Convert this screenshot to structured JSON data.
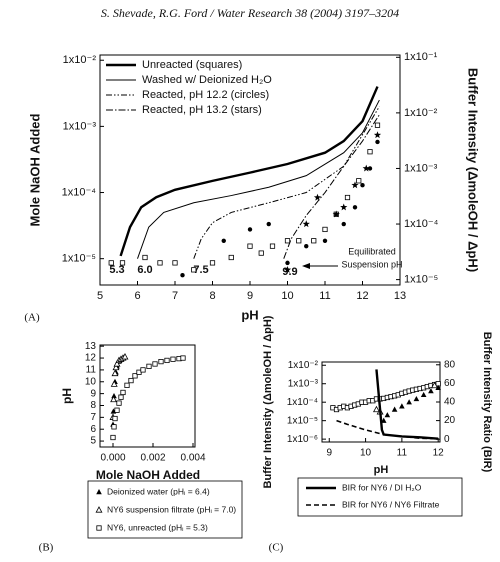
{
  "header": "S. Shevade, R.G. Ford / Water Research 38 (2004) 3197–3204",
  "chart_data": [
    {
      "type": "line",
      "panel": "(A)",
      "xlabel": "pH",
      "ylabel": "Mole NaOH Added",
      "y2label": "Buffer Intensity (ΔmoleOH / ΔpH)",
      "xlim": [
        5,
        13
      ],
      "xticks": [
        5,
        6,
        7,
        8,
        9,
        10,
        11,
        12,
        13
      ],
      "yscale": "log",
      "ylim": [
        4e-06,
        0.012
      ],
      "yticks": [
        {
          "value": 1e-05,
          "label": "1x10⁻⁵"
        },
        {
          "value": 0.0001,
          "label": "1x10⁻⁴"
        },
        {
          "value": 0.001,
          "label": "1x10⁻³"
        },
        {
          "value": 0.01,
          "label": "1x10⁻²"
        }
      ],
      "y2scale": "log",
      "y2lim": [
        8e-06,
        0.11
      ],
      "y2ticks": [
        {
          "value": 1e-05,
          "label": "1x10⁻⁵"
        },
        {
          "value": 0.0001,
          "label": "1x10⁻⁴"
        },
        {
          "value": 0.001,
          "label": "1x10⁻³"
        },
        {
          "value": 0.01,
          "label": "1x10⁻²"
        },
        {
          "value": 0.1,
          "label": "1x10⁻¹"
        }
      ],
      "legend": "upper left",
      "annotations": [
        "5.3",
        "6.0",
        "7.5",
        "9.9",
        "Equilibrated",
        "Suspension pH"
      ],
      "series": [
        {
          "name": "Unreacted (squares)",
          "color": "#000000",
          "line_style": "thick-solid",
          "x": [
            5.55,
            5.8,
            6.1,
            6.5,
            7,
            8,
            9,
            10,
            11,
            11.5,
            12,
            12.4
          ],
          "values": [
            1.1e-05,
            3e-05,
            6e-05,
            8.5e-05,
            0.00011,
            0.00015,
            0.0002,
            0.00027,
            0.0004,
            0.0006,
            0.0012,
            0.004
          ],
          "marker": "square",
          "marker_axis": "y2",
          "marker_x": [
            5.3,
            5.6,
            6.2,
            6.6,
            7,
            7.5,
            8,
            8.5,
            9,
            9.3,
            9.6,
            10,
            10.3,
            10.7,
            11,
            11.3,
            11.6,
            11.9,
            12.2,
            12.4
          ],
          "marker_values": [
            2e-05,
            2e-05,
            2.5e-05,
            2e-05,
            2e-05,
            1.5e-05,
            2e-05,
            2.5e-05,
            4e-05,
            3e-05,
            4e-05,
            5e-05,
            5e-05,
            5e-05,
            8e-05,
            0.00015,
            0.0003,
            0.0006,
            0.002,
            0.006
          ]
        },
        {
          "name": "Washed w/ Deionized H₂O",
          "color": "#000000",
          "line_style": "solid",
          "x": [
            6.0,
            6.3,
            6.7,
            7.5,
            8.5,
            9.5,
            10.5,
            11.5,
            12,
            12.45
          ],
          "values": [
            1e-05,
            3e-05,
            5e-05,
            7e-05,
            9e-05,
            0.00012,
            0.00018,
            0.0004,
            0.0008,
            0.0025
          ]
        },
        {
          "name": "Reacted, pH 12.2 (circles)",
          "color": "#000000",
          "line_style": "dash-dot-dot",
          "x": [
            7.5,
            7.7,
            8,
            8.5,
            9.5,
            10.5,
            11.5,
            12.45
          ],
          "values": [
            1e-05,
            2e-05,
            3.5e-05,
            5e-05,
            7e-05,
            0.0001,
            0.00025,
            0.002
          ],
          "marker": "circle",
          "marker_axis": "y2",
          "marker_x": [
            7.2,
            8.3,
            9,
            9.5,
            10,
            10.5,
            11,
            11.5,
            11.8,
            12,
            12.2,
            12.4
          ],
          "marker_values": [
            1.2e-05,
            5e-05,
            8e-05,
            0.0001,
            2e-05,
            4e-05,
            5e-05,
            0.0001,
            0.0002,
            0.0005,
            0.001,
            0.003
          ]
        },
        {
          "name": "Reacted, pH 13.2 (stars)",
          "color": "#000000",
          "line_style": "dash-dot",
          "x": [
            9.9,
            10.1,
            10.5,
            11,
            11.5,
            12,
            12.45
          ],
          "values": [
            1e-05,
            2e-05,
            4.5e-05,
            0.0001,
            0.00025,
            0.0006,
            0.0015
          ],
          "marker": "star",
          "marker_axis": "y2",
          "marker_x": [
            10,
            10.5,
            10.8,
            11.3,
            11.5,
            11.8,
            12.1,
            12.4
          ],
          "marker_values": [
            1.5e-05,
            0.0001,
            0.0003,
            0.00015,
            0.0002,
            0.0005,
            0.001,
            0.004
          ]
        }
      ]
    },
    {
      "type": "scatter",
      "panel": "(B)",
      "xlabel": "Mole NaOH Added",
      "ylabel": "pH",
      "xlim": [
        -0.00065,
        0.0041
      ],
      "xticks": [
        {
          "value": 0,
          "label": "0.000"
        },
        {
          "value": 0.002,
          "label": "0.002"
        },
        {
          "value": 0.004,
          "label": "0.004"
        }
      ],
      "ylim": [
        4.5,
        13.1
      ],
      "yticks": [
        5,
        6,
        7,
        8,
        9,
        10,
        11,
        12,
        13
      ],
      "legend": "below",
      "series": [
        {
          "name": "Deionized water (pHᵢ = 6.4)",
          "color": "#000000",
          "marker": "filled-triangle",
          "x": [
            0,
            2e-05,
            5e-05,
            0.0001,
            0.00015,
            0.0002,
            0.0003,
            0.0004,
            0.0005
          ],
          "values": [
            6.4,
            7.5,
            8.8,
            10,
            10.8,
            11.3,
            11.7,
            11.9,
            12.0
          ]
        },
        {
          "name": "NY6 suspension filtrate (pHᵢ = 7.0)",
          "color": "#000000",
          "marker": "open-triangle",
          "x": [
            0,
            3e-05,
            6e-05,
            0.0001,
            0.00015,
            0.0002,
            0.0003,
            0.0004,
            0.0005,
            0.0006
          ],
          "values": [
            7.0,
            8.5,
            9.8,
            10.7,
            11.2,
            11.5,
            11.8,
            11.9,
            12.0,
            12.1
          ]
        },
        {
          "name": "NY6, unreacted (pHᵢ = 5.3)",
          "color": "#000000",
          "marker": "square",
          "x": [
            0,
            5e-05,
            0.0001,
            0.0002,
            0.0003,
            0.0004,
            0.0005,
            0.0007,
            0.0009,
            0.0011,
            0.0013,
            0.0015,
            0.0018,
            0.0021,
            0.0024,
            0.0027,
            0.003,
            0.0033,
            0.0035
          ],
          "values": [
            5.3,
            6.2,
            6.9,
            7.6,
            8.2,
            8.7,
            9.1,
            9.7,
            10.1,
            10.5,
            10.8,
            11.0,
            11.3,
            11.5,
            11.7,
            11.8,
            11.9,
            11.95,
            12.0
          ]
        }
      ]
    },
    {
      "type": "line",
      "panel": "(C)",
      "xlabel": "pH",
      "ylabel": "Buffer Intensity (ΔmoleOH / ΔpH)",
      "y2label": "Buffer Intensity Ratio (BIR)",
      "xlim": [
        8.8,
        12.05
      ],
      "xticks": [
        9,
        10,
        11,
        12
      ],
      "yscale": "log",
      "ylim": [
        7e-07,
        0.015
      ],
      "yticks": [
        {
          "value": 1e-06,
          "label": "1x10⁻⁶"
        },
        {
          "value": 1e-05,
          "label": "1x10⁻⁵"
        },
        {
          "value": 0.0001,
          "label": "1x10⁻⁴"
        },
        {
          "value": 0.001,
          "label": "1x10⁻³"
        },
        {
          "value": 0.01,
          "label": "1x10⁻²"
        }
      ],
      "y2lim": [
        -3,
        83
      ],
      "y2ticks": [
        0,
        20,
        40,
        60,
        80
      ],
      "legend": "below",
      "series": [
        {
          "color": "#000000",
          "marker": "square",
          "x": [
            9.1,
            9.2,
            9.3,
            9.4,
            9.5,
            9.6,
            9.7,
            9.8,
            9.9,
            10,
            10.1,
            10.2,
            10.3,
            10.4,
            10.5,
            10.6,
            10.7,
            10.8,
            10.9,
            11,
            11.1,
            11.2,
            11.3,
            11.4,
            11.5,
            11.6,
            11.7,
            11.8,
            11.9,
            12
          ],
          "values": [
            5e-05,
            4e-05,
            5e-05,
            6e-05,
            5e-05,
            6e-05,
            7e-05,
            8e-05,
            0.0001,
            0.0001,
            0.00012,
            0.00012,
            0.00015,
            0.00015,
            0.00016,
            0.00018,
            0.0002,
            0.00022,
            0.00025,
            0.0003,
            0.00035,
            0.0004,
            0.00045,
            0.0005,
            0.00055,
            0.0006,
            0.0007,
            0.0008,
            0.0009,
            0.001
          ]
        },
        {
          "color": "#000000",
          "marker": "filled-triangle",
          "x": [
            10.5,
            10.6,
            10.8,
            11,
            11.2,
            11.4,
            11.6,
            11.8,
            12
          ],
          "values": [
            1e-05,
            2e-05,
            4e-05,
            6e-05,
            0.0001,
            0.00015,
            0.00025,
            0.0004,
            0.0006
          ]
        },
        {
          "color": "#000000",
          "marker": "open-triangle",
          "x": [
            10.3,
            10.4,
            11.9
          ],
          "values": [
            4e-05,
            3e-05,
            0.0008
          ]
        },
        {
          "name": "BIR for NY6 / DI H₂O",
          "color": "#000000",
          "line_style": "thick-solid",
          "axis": "y2",
          "x": [
            10.3,
            10.45,
            10.5,
            11,
            11.5,
            12
          ],
          "values": [
            75,
            10,
            5,
            3,
            2,
            0.5
          ]
        },
        {
          "name": "BIR for NY6 / NY6 Filtrate",
          "color": "#000000",
          "line_style": "dash",
          "axis": "y2",
          "x": [
            9.2,
            9.5,
            10,
            10.5,
            11,
            11.5,
            12
          ],
          "values": [
            20,
            16,
            10,
            5,
            3,
            1,
            0.5
          ]
        }
      ]
    }
  ]
}
